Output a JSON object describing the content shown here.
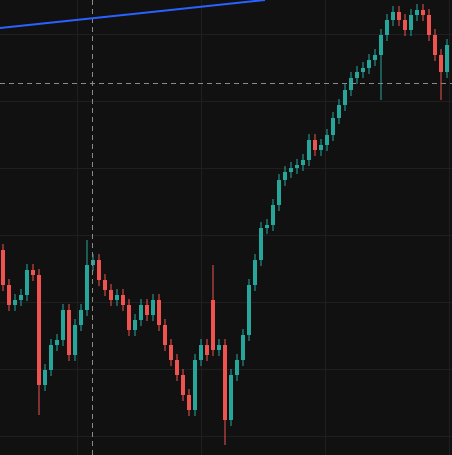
{
  "chart_data": {
    "type": "candlestick",
    "up_color": "#26a69a",
    "down_color": "#ef5350",
    "ylim": [
      0,
      455
    ],
    "open": [
      205,
      170,
      150,
      155,
      160,
      185,
      180,
      70,
      85,
      110,
      115,
      145,
      100,
      130,
      145,
      190,
      195,
      175,
      165,
      155,
      160,
      150,
      125,
      135,
      150,
      140,
      155,
      130,
      110,
      95,
      80,
      60,
      45,
      95,
      110,
      155,
      105,
      110,
      35,
      80,
      95,
      120,
      170,
      195,
      227,
      230,
      250,
      275,
      283,
      287,
      290,
      295,
      315,
      305,
      310,
      320,
      337,
      350,
      365,
      377,
      383,
      387,
      395,
      400,
      420,
      435,
      443,
      435,
      425,
      440,
      445,
      440,
      420,
      400,
      383
    ],
    "high": [
      211,
      176,
      161,
      166,
      191,
      191,
      186,
      91,
      116,
      121,
      151,
      151,
      136,
      151,
      215,
      201,
      201,
      181,
      171,
      166,
      166,
      156,
      141,
      156,
      156,
      161,
      161,
      136,
      116,
      101,
      86,
      66,
      101,
      116,
      116,
      190,
      116,
      116,
      86,
      101,
      126,
      176,
      201,
      233,
      236,
      256,
      281,
      289,
      293,
      296,
      301,
      321,
      321,
      316,
      326,
      343,
      356,
      371,
      383,
      389,
      393,
      401,
      406,
      426,
      441,
      449,
      449,
      441,
      446,
      451,
      451,
      446,
      426,
      406,
      416
    ],
    "low": [
      164,
      144,
      144,
      149,
      154,
      174,
      40,
      64,
      79,
      104,
      109,
      94,
      94,
      124,
      139,
      184,
      169,
      159,
      149,
      149,
      144,
      119,
      119,
      129,
      134,
      134,
      124,
      104,
      89,
      74,
      54,
      39,
      39,
      89,
      94,
      99,
      99,
      10,
      29,
      74,
      89,
      114,
      164,
      189,
      221,
      224,
      244,
      269,
      277,
      281,
      284,
      289,
      299,
      299,
      304,
      314,
      331,
      344,
      359,
      371,
      377,
      381,
      389,
      355,
      414,
      429,
      429,
      419,
      419,
      434,
      434,
      414,
      394,
      355,
      377
    ],
    "close": [
      170,
      150,
      155,
      160,
      185,
      180,
      70,
      85,
      110,
      115,
      145,
      100,
      130,
      145,
      190,
      195,
      175,
      165,
      155,
      160,
      150,
      125,
      135,
      150,
      140,
      155,
      130,
      110,
      95,
      80,
      60,
      45,
      95,
      110,
      100,
      105,
      110,
      35,
      80,
      95,
      120,
      170,
      195,
      227,
      230,
      250,
      275,
      283,
      287,
      290,
      295,
      315,
      305,
      310,
      320,
      337,
      350,
      365,
      377,
      383,
      387,
      395,
      400,
      420,
      435,
      443,
      435,
      425,
      440,
      445,
      440,
      420,
      400,
      383,
      410
    ],
    "trend_line": {
      "color": "#2962ff",
      "start": 427,
      "end": 455
    }
  }
}
